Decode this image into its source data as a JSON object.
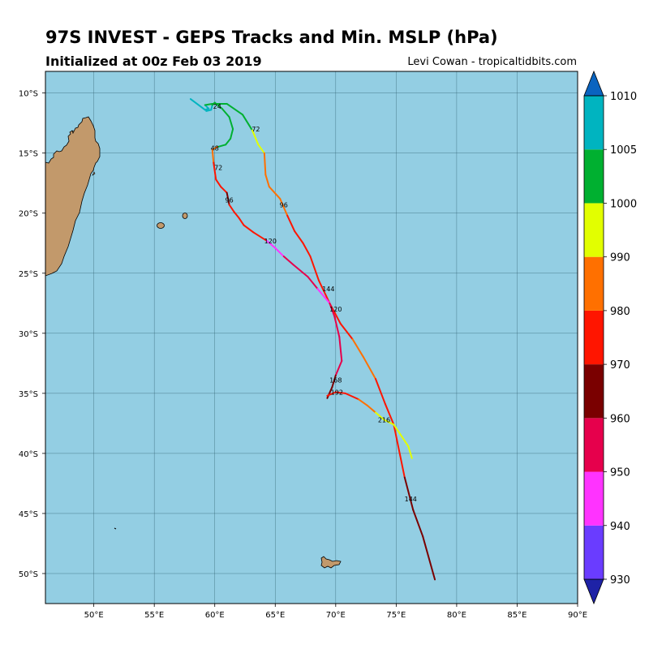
{
  "header": {
    "title": "97S INVEST - GEPS Tracks and Min. MSLP (hPa)",
    "subtitle": "Initialized at 00z Feb 03 2019",
    "credit": "Levi Cowan - tropicaltidbits.com"
  },
  "map": {
    "background_color": "#93cee3",
    "land_color": "#c2996b",
    "lon_range": [
      46,
      90
    ],
    "lat_range": [
      -52.5,
      -8.2
    ],
    "lon_ticks": [
      "50°E",
      "55°E",
      "60°E",
      "65°E",
      "70°E",
      "75°E",
      "80°E",
      "85°E",
      "90°E"
    ],
    "lat_ticks": [
      "10°S",
      "15°S",
      "20°S",
      "25°S",
      "30°S",
      "35°S",
      "40°S",
      "45°S",
      "50°S"
    ]
  },
  "colorbar": {
    "levels": [
      "930",
      "940",
      "950",
      "960",
      "970",
      "980",
      "990",
      "1000",
      "1005",
      "1010"
    ],
    "colors": [
      "#1e22a6",
      "#6a3cff",
      "#ff33ff",
      "#e6004c",
      "#7a0000",
      "#ff1500",
      "#ff7000",
      "#e2ff00",
      "#00b030",
      "#00b4c0",
      "#0a64c0"
    ]
  },
  "tracks": [
    {
      "points": [
        [
          58,
          -10.5,
          "cyan"
        ],
        [
          59.2,
          -11.4,
          "cyan"
        ],
        [
          59.5,
          -11.3,
          "cyan"
        ],
        [
          59.2,
          -11,
          "cyan"
        ],
        [
          59.8,
          -10.9,
          "green"
        ],
        [
          61,
          -10.9,
          "green"
        ],
        [
          62.3,
          -11.8,
          "green"
        ],
        [
          63.1,
          -13.1,
          "green"
        ],
        [
          63.6,
          -14.3,
          "yellow"
        ],
        [
          64.1,
          -15.0,
          "yellow"
        ],
        [
          64.2,
          -16.8,
          "orange"
        ],
        [
          64.5,
          -17.8,
          "orange"
        ],
        [
          65.4,
          -18.8,
          "orange"
        ],
        [
          66.0,
          -20.2,
          "orange"
        ],
        [
          66.6,
          -21.5,
          "red"
        ],
        [
          67.3,
          -22.5,
          "red"
        ],
        [
          67.9,
          -23.6,
          "red"
        ],
        [
          68.6,
          -25.6,
          "red"
        ],
        [
          69.5,
          -27.5,
          "red"
        ],
        [
          70.4,
          -29.2,
          "red"
        ],
        [
          71.4,
          -30.5,
          "red"
        ],
        [
          72.3,
          -32.0,
          "orange"
        ],
        [
          73.3,
          -33.8,
          "orange"
        ],
        [
          74.1,
          -35.9,
          "red"
        ],
        [
          74.8,
          -37.6,
          "red"
        ],
        [
          75.7,
          -42.0,
          "red"
        ],
        [
          76.4,
          -44.7,
          "darkred"
        ],
        [
          77.2,
          -46.9,
          "darkred"
        ],
        [
          78.2,
          -50.5,
          "darkred"
        ]
      ],
      "labels": [
        [
          "24",
          60.2,
          -11.3
        ],
        [
          "72",
          63.4,
          -13.2
        ],
        [
          "96",
          65.7,
          -19.5
        ],
        [
          "144",
          69.4,
          -26.5
        ],
        [
          "144",
          76.2,
          -44.0
        ]
      ]
    },
    {
      "points": [
        [
          59.3,
          -11.5,
          "cyan"
        ],
        [
          59.7,
          -11.4,
          "cyan"
        ],
        [
          59.8,
          -11.0,
          "cyan"
        ],
        [
          60.0,
          -10.8,
          "green"
        ],
        [
          60.6,
          -11.3,
          "green"
        ],
        [
          61.2,
          -12.0,
          "green"
        ],
        [
          61.5,
          -13.0,
          "green"
        ],
        [
          61.3,
          -13.8,
          "green"
        ],
        [
          60.9,
          -14.3,
          "green"
        ],
        [
          60.2,
          -14.5,
          "green"
        ],
        [
          59.8,
          -14.7,
          "orange"
        ],
        [
          59.9,
          -15.8,
          "orange"
        ],
        [
          60.1,
          -17.2,
          "red"
        ],
        [
          60.5,
          -17.8,
          "red"
        ],
        [
          61.0,
          -18.3,
          "red"
        ],
        [
          61.2,
          -19.3,
          "darkred"
        ],
        [
          61.6,
          -19.9,
          "red"
        ],
        [
          62.0,
          -20.4,
          "red"
        ],
        [
          62.4,
          -21.0,
          "red"
        ],
        [
          63.2,
          -21.6,
          "red"
        ],
        [
          64.3,
          -22.3,
          "red"
        ],
        [
          65.0,
          -22.9,
          "magenta"
        ],
        [
          65.7,
          -23.6,
          "magenta"
        ],
        [
          66.5,
          -24.3,
          "crimson"
        ],
        [
          67.7,
          -25.3,
          "crimson"
        ],
        [
          68.5,
          -26.3,
          "crimson"
        ],
        [
          69.5,
          -27.5,
          "magenta"
        ],
        [
          69.9,
          -28.6,
          "crimson"
        ],
        [
          70.3,
          -30.3,
          "crimson"
        ],
        [
          70.5,
          -32.3,
          "crimson"
        ],
        [
          70.0,
          -33.5,
          "crimson"
        ],
        [
          69.7,
          -34.5,
          "darkred"
        ],
        [
          69.3,
          -35.4,
          "darkred"
        ]
      ],
      "labels": [
        [
          "48",
          60.0,
          -14.8
        ],
        [
          "72",
          60.3,
          -16.4
        ],
        [
          "96",
          61.2,
          -19.1
        ],
        [
          "120",
          64.6,
          -22.5
        ],
        [
          "120",
          70.0,
          -28.2
        ],
        [
          "168",
          70.0,
          -34.1
        ],
        [
          "192",
          70.1,
          -35.1
        ]
      ]
    },
    {
      "points": [
        [
          69.3,
          -35.2,
          "red"
        ],
        [
          70.0,
          -34.9,
          "red"
        ],
        [
          70.8,
          -35.0,
          "red"
        ],
        [
          71.9,
          -35.5,
          "red"
        ],
        [
          72.6,
          -36.0,
          "orange"
        ],
        [
          73.3,
          -36.6,
          "orange"
        ],
        [
          74.0,
          -37.2,
          "yellow"
        ],
        [
          74.8,
          -37.6,
          "yellow"
        ],
        [
          75.4,
          -38.5,
          "yellow"
        ],
        [
          76.0,
          -39.4,
          "yellow"
        ],
        [
          76.3,
          -40.4,
          "yellow"
        ]
      ],
      "labels": [
        [
          "216",
          74.0,
          -37.4
        ]
      ]
    }
  ],
  "track_colors": {
    "cyan": "#00b4c0",
    "green": "#00b030",
    "yellow": "#e2ff00",
    "orange": "#ff7000",
    "red": "#ff1500",
    "darkred": "#7a0000",
    "crimson": "#e6004c",
    "magenta": "#ff33ff"
  }
}
